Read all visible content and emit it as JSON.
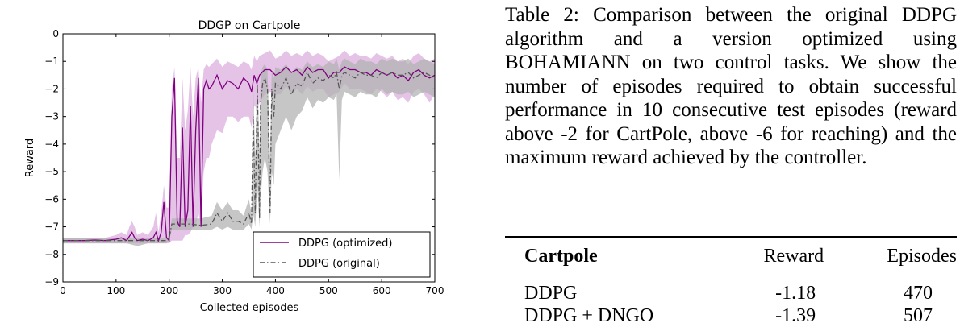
{
  "figure": {
    "chart_data": {
      "type": "line",
      "title": "DDGP on Cartpole",
      "xlabel": "Collected episodes",
      "ylabel": "Reward",
      "xlim": [
        0,
        700
      ],
      "ylim": [
        -9,
        0
      ],
      "xticks": [
        0,
        100,
        200,
        300,
        400,
        500,
        600,
        700
      ],
      "yticks": [
        0,
        -1,
        -2,
        -3,
        -4,
        -5,
        -6,
        -7,
        -8,
        -9
      ],
      "ytick_labels": [
        "0",
        "−1",
        "−2",
        "−3",
        "−4",
        "−5",
        "−6",
        "−7",
        "−8",
        "−9"
      ],
      "legend_position": "lower-right",
      "grid": false,
      "series": [
        {
          "name": "DDPG (optimized)",
          "color": "#800080",
          "band_color": "#d8a9dd",
          "style": "solid",
          "x": [
            0,
            20,
            40,
            60,
            80,
            100,
            110,
            120,
            125,
            130,
            135,
            140,
            150,
            160,
            170,
            175,
            180,
            185,
            190,
            195,
            200,
            205,
            210,
            215,
            220,
            225,
            230,
            235,
            240,
            245,
            250,
            255,
            260,
            265,
            270,
            275,
            280,
            290,
            300,
            310,
            320,
            330,
            340,
            350,
            355,
            360,
            365,
            370,
            380,
            390,
            400,
            410,
            420,
            430,
            440,
            450,
            460,
            470,
            480,
            490,
            500,
            510,
            520,
            530,
            540,
            550,
            560,
            570,
            580,
            590,
            600,
            610,
            620,
            630,
            640,
            650,
            660,
            670,
            680,
            690,
            700
          ],
          "mean": [
            -7.5,
            -7.5,
            -7.5,
            -7.48,
            -7.5,
            -7.45,
            -7.4,
            -7.5,
            -7.35,
            -7.2,
            -7.4,
            -7.5,
            -7.45,
            -7.5,
            -7.4,
            -7.2,
            -7.5,
            -7.2,
            -6.1,
            -7.4,
            -7.5,
            -3.0,
            -1.6,
            -6.8,
            -7.0,
            -3.4,
            -7.0,
            -6.4,
            -2.6,
            -7.0,
            -3.5,
            -1.6,
            -7.0,
            -2.0,
            -1.7,
            -2.0,
            -1.9,
            -1.5,
            -2.0,
            -1.7,
            -1.8,
            -2.0,
            -1.6,
            -1.8,
            -2.1,
            -1.5,
            -1.8,
            -1.5,
            -1.3,
            -1.3,
            -1.5,
            -1.4,
            -1.2,
            -1.4,
            -1.3,
            -1.5,
            -1.2,
            -1.4,
            -1.3,
            -1.3,
            -1.6,
            -1.4,
            -1.4,
            -1.2,
            -1.3,
            -1.3,
            -1.4,
            -1.4,
            -1.5,
            -1.3,
            -1.4,
            -1.5,
            -1.4,
            -1.6,
            -1.5,
            -1.7,
            -1.4,
            -1.3,
            -1.5,
            -1.6,
            -1.5
          ],
          "low": [
            -7.6,
            -7.6,
            -7.6,
            -7.6,
            -7.6,
            -7.6,
            -7.6,
            -7.6,
            -7.6,
            -7.6,
            -7.6,
            -7.6,
            -7.6,
            -7.6,
            -7.6,
            -7.6,
            -7.6,
            -7.6,
            -7.6,
            -7.6,
            -7.6,
            -7.5,
            -7.5,
            -7.5,
            -7.5,
            -7.5,
            -7.3,
            -7.3,
            -7.2,
            -7.0,
            -7.0,
            -6.5,
            -7.0,
            -5.0,
            -4.5,
            -4.5,
            -4.0,
            -3.5,
            -3.6,
            -3.0,
            -3.0,
            -3.2,
            -3.0,
            -3.0,
            -3.4,
            -2.6,
            -2.7,
            -2.5,
            -2.2,
            -2.1,
            -2.2,
            -2.2,
            -1.9,
            -2.2,
            -2.0,
            -2.2,
            -1.9,
            -2.1,
            -2.0,
            -2.0,
            -2.3,
            -2.2,
            -2.1,
            -1.8,
            -2.0,
            -2.0,
            -2.0,
            -2.1,
            -2.2,
            -2.0,
            -2.1,
            -2.3,
            -2.1,
            -2.4,
            -2.3,
            -2.5,
            -2.1,
            -2.0,
            -2.2,
            -2.5,
            -2.2
          ],
          "high": [
            -7.4,
            -7.4,
            -7.4,
            -7.4,
            -7.4,
            -7.3,
            -7.2,
            -7.3,
            -7.0,
            -6.8,
            -7.0,
            -7.3,
            -7.2,
            -7.3,
            -7.0,
            -6.5,
            -7.2,
            -6.5,
            -5.5,
            -6.3,
            -6.3,
            -2.0,
            -1.2,
            -4.5,
            -4.5,
            -1.6,
            -3.5,
            -2.8,
            -1.2,
            -3.0,
            -1.6,
            -1.2,
            -2.5,
            -1.3,
            -1.1,
            -1.2,
            -1.1,
            -0.9,
            -1.2,
            -1.0,
            -1.1,
            -1.2,
            -1.0,
            -1.1,
            -1.3,
            -0.8,
            -1.0,
            -0.8,
            -0.7,
            -0.6,
            -0.9,
            -0.8,
            -0.6,
            -0.8,
            -0.7,
            -0.8,
            -0.6,
            -0.8,
            -0.7,
            -0.8,
            -1.0,
            -0.9,
            -0.8,
            -0.6,
            -0.8,
            -0.7,
            -0.8,
            -0.8,
            -0.9,
            -0.7,
            -0.8,
            -0.9,
            -0.8,
            -1.0,
            -0.9,
            -1.1,
            -0.8,
            -0.7,
            -0.9,
            -1.0,
            -0.9
          ]
        },
        {
          "name": "DDPG (original)",
          "color": "#555555",
          "band_color": "#b3b3b3",
          "style": "dashdot",
          "x": [
            0,
            20,
            40,
            60,
            80,
            100,
            120,
            140,
            160,
            180,
            195,
            200,
            205,
            210,
            220,
            240,
            260,
            280,
            290,
            300,
            310,
            320,
            330,
            340,
            350,
            355,
            358,
            362,
            366,
            370,
            372,
            376,
            380,
            385,
            390,
            393,
            397,
            400,
            410,
            420,
            430,
            440,
            450,
            460,
            470,
            480,
            490,
            500,
            510,
            515,
            520,
            525,
            530,
            540,
            550,
            560,
            570,
            580,
            590,
            600,
            610,
            620,
            630,
            640,
            650,
            660,
            670,
            680,
            690,
            700
          ],
          "mean": [
            -7.5,
            -7.5,
            -7.5,
            -7.5,
            -7.5,
            -7.5,
            -7.5,
            -7.5,
            -7.5,
            -7.5,
            -7.5,
            -7.4,
            -6.9,
            -6.9,
            -6.9,
            -6.9,
            -6.95,
            -6.9,
            -6.5,
            -6.8,
            -6.5,
            -6.8,
            -6.8,
            -6.9,
            -6.5,
            -6.9,
            -3.0,
            -6.5,
            -1.8,
            -6.7,
            -2.5,
            -1.8,
            -1.6,
            -2.0,
            -6.5,
            -2.0,
            -3.0,
            -1.8,
            -2.0,
            -1.6,
            -2.2,
            -1.8,
            -1.9,
            -1.4,
            -1.8,
            -1.6,
            -1.7,
            -1.5,
            -1.6,
            -1.4,
            -2.0,
            -1.5,
            -1.4,
            -1.5,
            -1.6,
            -1.4,
            -1.5,
            -1.5,
            -1.6,
            -1.4,
            -1.5,
            -1.4,
            -1.5,
            -1.5,
            -1.4,
            -1.6,
            -1.5,
            -1.4,
            -1.5,
            -1.6
          ],
          "low": [
            -7.6,
            -7.6,
            -7.6,
            -7.6,
            -7.6,
            -7.6,
            -7.6,
            -7.7,
            -7.6,
            -7.6,
            -7.6,
            -7.5,
            -7.1,
            -7.1,
            -7.1,
            -7.1,
            -7.1,
            -7.1,
            -7.0,
            -7.1,
            -7.0,
            -7.1,
            -7.1,
            -7.1,
            -6.9,
            -7.1,
            -6.5,
            -7.0,
            -5.5,
            -7.0,
            -6.0,
            -5.0,
            -4.5,
            -5.0,
            -6.9,
            -5.0,
            -5.5,
            -4.0,
            -3.5,
            -3.0,
            -3.5,
            -3.0,
            -2.8,
            -2.3,
            -2.7,
            -2.4,
            -2.5,
            -2.3,
            -2.4,
            -2.2,
            -5.3,
            -2.4,
            -2.1,
            -2.2,
            -2.3,
            -2.1,
            -2.2,
            -2.2,
            -2.3,
            -2.0,
            -2.2,
            -2.1,
            -2.2,
            -2.2,
            -2.1,
            -2.3,
            -2.2,
            -2.1,
            -2.2,
            -2.3
          ],
          "high": [
            -7.4,
            -7.4,
            -7.4,
            -7.4,
            -7.4,
            -7.4,
            -7.4,
            -7.4,
            -7.4,
            -7.4,
            -7.4,
            -7.3,
            -6.7,
            -6.7,
            -6.7,
            -6.7,
            -6.7,
            -6.6,
            -6.1,
            -6.4,
            -6.1,
            -6.4,
            -6.4,
            -6.6,
            -6.0,
            -6.5,
            -1.8,
            -4.5,
            -1.3,
            -4.5,
            -1.5,
            -1.2,
            -1.1,
            -1.3,
            -4.5,
            -1.3,
            -1.6,
            -1.2,
            -1.3,
            -1.1,
            -1.4,
            -1.2,
            -1.3,
            -1.0,
            -1.2,
            -1.1,
            -1.2,
            -1.0,
            -1.1,
            -0.9,
            -1.3,
            -1.0,
            -0.9,
            -1.0,
            -1.1,
            -0.9,
            -1.0,
            -1.0,
            -1.1,
            -0.9,
            -1.0,
            -0.9,
            -1.0,
            -1.0,
            -0.9,
            -1.1,
            -1.0,
            -0.9,
            -1.0,
            -1.1
          ]
        }
      ]
    }
  },
  "caption": {
    "text": "Table 2:  Comparison between the original DDPG algorithm and a version optimized using BOHAMIANN on two control tasks. We show the number of episodes required to obtain successful performance in 10 consecutive test episodes (reward above -2 for CartPole, above -6 for reaching) and the maximum reward achieved by the controller."
  },
  "table": {
    "headers": [
      "Cartpole",
      "Reward",
      "Episodes"
    ],
    "rows": [
      {
        "method": "DDPG",
        "reward": "-1.18",
        "episodes": "470"
      },
      {
        "method": "DDPG + DNGO",
        "reward": "-1.39",
        "episodes": "507"
      }
    ]
  }
}
